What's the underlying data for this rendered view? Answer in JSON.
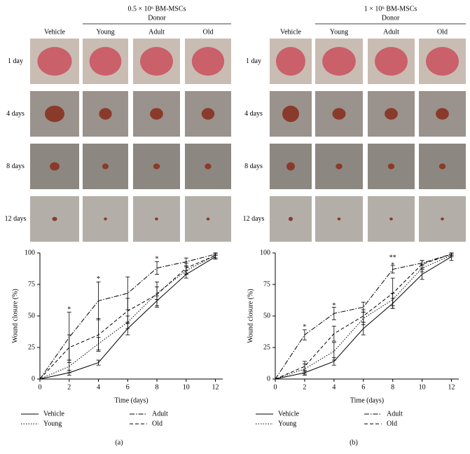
{
  "panels": [
    {
      "group_title": "0.5 × 10⁶ BM-MSCs",
      "subtitle": "Donor",
      "columns": [
        "Vehicle",
        "Young",
        "Adult",
        "Old"
      ],
      "rows": [
        "1 day",
        "4 days",
        "8 days",
        "12 days"
      ],
      "label": "(a)"
    },
    {
      "group_title": "1 × 10⁶ BM-MSCs",
      "subtitle": "Donor",
      "columns": [
        "Vehicle",
        "Young",
        "Adult",
        "Old"
      ],
      "rows": [
        "1 day",
        "4 days",
        "8 days",
        "12 days"
      ],
      "label": "(b)"
    }
  ],
  "chart_data": [
    {
      "type": "line",
      "x_label": "Time (days)",
      "y_label": "Wound closure (%)",
      "x": [
        0,
        2,
        4,
        6,
        8,
        10,
        12
      ],
      "xlim": [
        0,
        12.5
      ],
      "xticks": [
        0,
        2,
        4,
        6,
        8,
        10,
        12
      ],
      "ylim": [
        0,
        100
      ],
      "yticks": [
        0,
        25,
        50,
        75,
        100
      ],
      "series": [
        {
          "name": "Vehicle",
          "color": "#000000",
          "dash": "solid",
          "values": [
            0,
            5,
            13,
            40,
            62,
            83,
            97
          ],
          "errors": [
            0,
            2,
            2,
            5,
            4,
            3,
            2
          ]
        },
        {
          "name": "Young",
          "color": "#000000",
          "dash": "dotted",
          "values": [
            0,
            10,
            28,
            45,
            68,
            86,
            98
          ],
          "errors": [
            0,
            5,
            5,
            5,
            5,
            3,
            2
          ]
        },
        {
          "name": "Adult",
          "color": "#000000",
          "dash": "dashdot",
          "values": [
            0,
            33,
            62,
            68,
            88,
            93,
            99
          ],
          "errors": [
            0,
            20,
            15,
            13,
            5,
            3,
            1
          ]
        },
        {
          "name": "Old",
          "color": "#000000",
          "dash": "dashed",
          "values": [
            0,
            25,
            35,
            54,
            67,
            88,
            98
          ],
          "errors": [
            0,
            10,
            13,
            10,
            10,
            4,
            2
          ]
        }
      ],
      "annotations": [
        {
          "x": 2,
          "y": 55,
          "text": "*"
        },
        {
          "x": 4,
          "y": 79,
          "text": "*"
        },
        {
          "x": 8,
          "y": 95,
          "text": "*"
        }
      ]
    },
    {
      "type": "line",
      "x_label": "Time (days)",
      "y_label": "Wound closure (%)",
      "x": [
        0,
        2,
        4,
        6,
        8,
        10,
        12
      ],
      "xlim": [
        0,
        12.5
      ],
      "xticks": [
        0,
        2,
        4,
        6,
        8,
        10,
        12
      ],
      "ylim": [
        0,
        100
      ],
      "yticks": [
        0,
        25,
        50,
        75,
        100
      ],
      "series": [
        {
          "name": "Vehicle",
          "color": "#000000",
          "dash": "solid",
          "values": [
            0,
            5,
            14,
            40,
            60,
            83,
            97
          ],
          "errors": [
            0,
            2,
            3,
            5,
            4,
            4,
            3
          ]
        },
        {
          "name": "Young",
          "color": "#000000",
          "dash": "dotted",
          "values": [
            0,
            8,
            22,
            48,
            63,
            88,
            98
          ],
          "errors": [
            0,
            4,
            7,
            5,
            5,
            3,
            1
          ]
        },
        {
          "name": "Adult",
          "color": "#000000",
          "dash": "dashdot",
          "values": [
            0,
            35,
            52,
            57,
            87,
            92,
            99
          ],
          "errors": [
            0,
            4,
            5,
            4,
            3,
            2,
            1
          ]
        },
        {
          "name": "Old",
          "color": "#000000",
          "dash": "dashed",
          "values": [
            0,
            10,
            36,
            50,
            68,
            91,
            99
          ],
          "errors": [
            0,
            4,
            6,
            5,
            12,
            3,
            1
          ]
        }
      ],
      "annotations": [
        {
          "x": 2,
          "y": 41,
          "text": "*"
        },
        {
          "x": 4,
          "y": 58,
          "text": "*"
        },
        {
          "x": 8,
          "y": 96,
          "text": "**"
        },
        {
          "x": 8,
          "y": 90,
          "text": "*"
        }
      ]
    }
  ]
}
